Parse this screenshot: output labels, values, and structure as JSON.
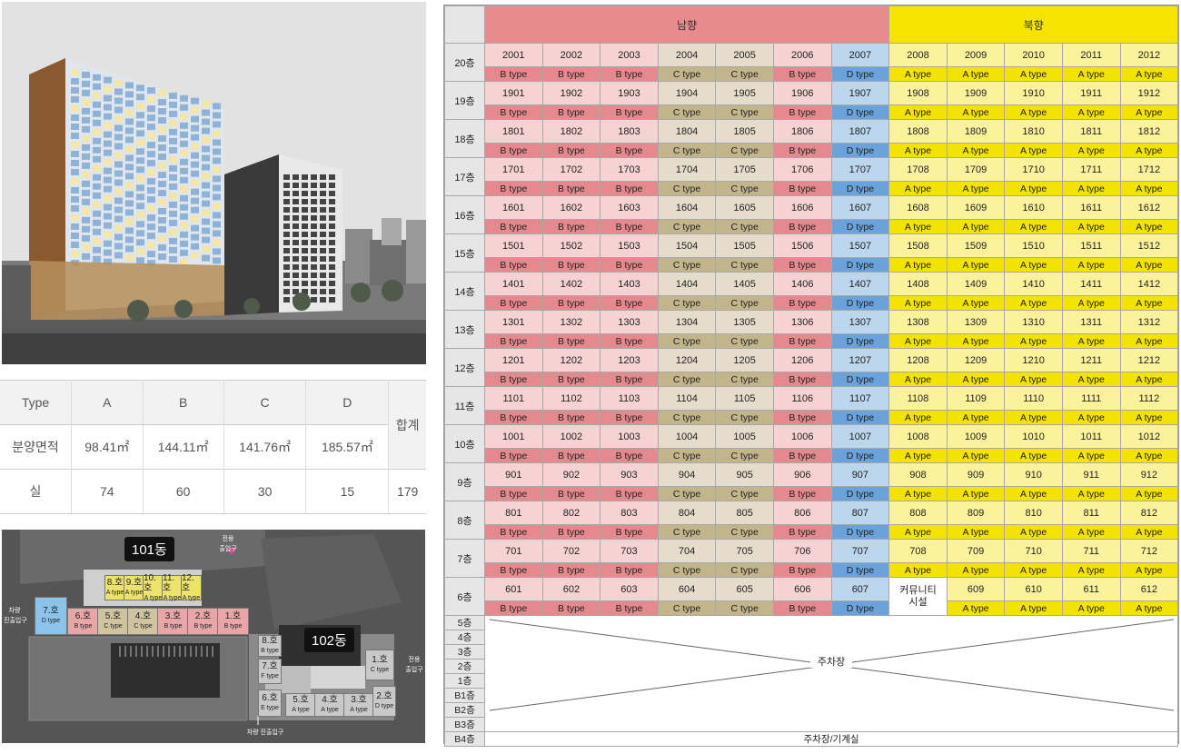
{
  "spec_table": {
    "headers": [
      "Type",
      "A",
      "B",
      "C",
      "D"
    ],
    "total_label": "합계",
    "rows": [
      {
        "label": "분양면적",
        "values": [
          "98.41㎡",
          "144.11㎡",
          "141.76㎡",
          "185.57㎡"
        ]
      },
      {
        "label": "실",
        "values": [
          "74",
          "60",
          "30",
          "15"
        ],
        "total": "179"
      }
    ]
  },
  "site_plan": {
    "building_101": "101동",
    "building_102": "102동",
    "entrance_top": "전용\n출입구",
    "entrance_left": "차량\n진출입구",
    "entrance_right": "전용\n출입구",
    "entrance_bottom": "차량 진출입구",
    "units_101_top": [
      {
        "no": "8.호",
        "type": "A type"
      },
      {
        "no": "9.호",
        "type": "A type"
      },
      {
        "no": "10.호",
        "type": "A type"
      },
      {
        "no": "11.호",
        "type": "A type"
      },
      {
        "no": "12.호",
        "type": "A type"
      }
    ],
    "units_101_bottom": [
      {
        "no": "7.호",
        "type": "D type",
        "color": "#8cc3ea"
      },
      {
        "no": "6.호",
        "type": "B type",
        "color": "#e8a6a8"
      },
      {
        "no": "5.호",
        "type": "C type",
        "color": "#cfc3a0"
      },
      {
        "no": "4.호",
        "type": "C type",
        "color": "#cfc3a0"
      },
      {
        "no": "3.호",
        "type": "B type",
        "color": "#e8a6a8"
      },
      {
        "no": "2.호",
        "type": "B type",
        "color": "#e8a6a8"
      },
      {
        "no": "1.호",
        "type": "B type",
        "color": "#e8a6a8"
      }
    ],
    "units_102": [
      {
        "no": "8.호",
        "type": "B type"
      },
      {
        "no": "7.호",
        "type": "F type"
      },
      {
        "no": "6.호",
        "type": "E type"
      },
      {
        "no": "5.호",
        "type": "A type"
      },
      {
        "no": "4.호",
        "type": "A type"
      },
      {
        "no": "3.호",
        "type": "A type"
      },
      {
        "no": "2.호",
        "type": "D type"
      },
      {
        "no": "1.호",
        "type": "C type"
      }
    ]
  },
  "grid": {
    "header_south": "남향",
    "header_north": "북향",
    "type_labels": {
      "A": "A type",
      "B": "B type",
      "C": "C type",
      "D": "D type"
    },
    "column_types": [
      "B",
      "B",
      "B",
      "C",
      "C",
      "B",
      "D",
      "A",
      "A",
      "A",
      "A",
      "A"
    ],
    "floor_suffix": "층",
    "floors": [
      20,
      19,
      18,
      17,
      16,
      15,
      14,
      13,
      12,
      11,
      10,
      9,
      8,
      7,
      6
    ],
    "community_label": "커뮤니티\n시설",
    "lower_floors": [
      "5층",
      "4층",
      "3층",
      "2층",
      "1층",
      "B1층",
      "B2층",
      "B3층"
    ],
    "bottom_floor": "B4층",
    "parking_label": "주차장",
    "parking_machine_label": "주차장/기계실"
  }
}
